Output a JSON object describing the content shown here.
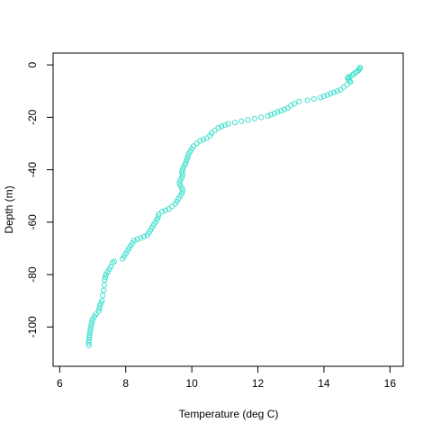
{
  "chart_data": {
    "type": "scatter",
    "title": "",
    "xlabel": "Temperature (deg C)",
    "ylabel": "Depth (m)",
    "xlim": [
      5.8,
      16.4
    ],
    "ylim": [
      -115,
      4.5
    ],
    "xticks": [
      6,
      8,
      10,
      12,
      14,
      16
    ],
    "yticks": [
      0,
      -20,
      -40,
      -60,
      -80,
      -100
    ],
    "marker": "open-circle",
    "color": "#40E0D0",
    "grid": false,
    "series": [
      {
        "points": [
          [
            15.1,
            -1.0
          ],
          [
            15.08,
            -1.5
          ],
          [
            15.05,
            -2.0
          ],
          [
            15.0,
            -2.5
          ],
          [
            14.95,
            -3.0
          ],
          [
            14.9,
            -3.5
          ],
          [
            14.85,
            -4.0
          ],
          [
            14.75,
            -4.5
          ],
          [
            14.72,
            -5.0
          ],
          [
            14.75,
            -5.5
          ],
          [
            14.78,
            -6.0
          ],
          [
            14.8,
            -6.5
          ],
          [
            14.7,
            -7.5
          ],
          [
            14.6,
            -8.5
          ],
          [
            14.5,
            -9.5
          ],
          [
            14.4,
            -10.0
          ],
          [
            14.3,
            -10.5
          ],
          [
            14.2,
            -11.0
          ],
          [
            14.1,
            -11.5
          ],
          [
            14.0,
            -12.0
          ],
          [
            13.9,
            -12.5
          ],
          [
            13.7,
            -13.0
          ],
          [
            13.5,
            -13.5
          ],
          [
            13.25,
            -14.0
          ],
          [
            13.1,
            -14.8
          ],
          [
            13.0,
            -15.5
          ],
          [
            12.9,
            -16.5
          ],
          [
            12.8,
            -17.0
          ],
          [
            12.7,
            -17.5
          ],
          [
            12.6,
            -18.0
          ],
          [
            12.5,
            -18.5
          ],
          [
            12.4,
            -19.0
          ],
          [
            12.3,
            -19.5
          ],
          [
            12.1,
            -20.0
          ],
          [
            11.9,
            -20.5
          ],
          [
            11.7,
            -21.0
          ],
          [
            11.5,
            -21.5
          ],
          [
            11.3,
            -22.0
          ],
          [
            11.1,
            -22.5
          ],
          [
            11.0,
            -23.0
          ],
          [
            10.9,
            -23.5
          ],
          [
            10.8,
            -24.0
          ],
          [
            10.7,
            -25.0
          ],
          [
            10.6,
            -26.0
          ],
          [
            10.55,
            -27.0
          ],
          [
            10.45,
            -28.0
          ],
          [
            10.35,
            -28.5
          ],
          [
            10.25,
            -29.0
          ],
          [
            10.15,
            -30.0
          ],
          [
            10.05,
            -31.0
          ],
          [
            10.0,
            -32.0
          ],
          [
            9.95,
            -33.0
          ],
          [
            9.9,
            -34.0
          ],
          [
            9.88,
            -35.0
          ],
          [
            9.85,
            -36.0
          ],
          [
            9.82,
            -37.0
          ],
          [
            9.8,
            -38.0
          ],
          [
            9.75,
            -39.0
          ],
          [
            9.72,
            -40.0
          ],
          [
            9.7,
            -41.0
          ],
          [
            9.72,
            -42.0
          ],
          [
            9.7,
            -43.0
          ],
          [
            9.65,
            -44.0
          ],
          [
            9.62,
            -45.0
          ],
          [
            9.65,
            -46.0
          ],
          [
            9.7,
            -47.0
          ],
          [
            9.72,
            -48.0
          ],
          [
            9.7,
            -49.0
          ],
          [
            9.65,
            -50.0
          ],
          [
            9.6,
            -51.0
          ],
          [
            9.55,
            -52.0
          ],
          [
            9.5,
            -53.0
          ],
          [
            9.4,
            -54.0
          ],
          [
            9.3,
            -55.0
          ],
          [
            9.2,
            -55.5
          ],
          [
            9.1,
            -56.0
          ],
          [
            9.0,
            -57.0
          ],
          [
            8.98,
            -58.0
          ],
          [
            8.95,
            -59.0
          ],
          [
            8.9,
            -60.0
          ],
          [
            8.85,
            -61.0
          ],
          [
            8.8,
            -62.0
          ],
          [
            8.75,
            -63.0
          ],
          [
            8.7,
            -64.0
          ],
          [
            8.65,
            -65.0
          ],
          [
            8.55,
            -65.5
          ],
          [
            8.45,
            -66.0
          ],
          [
            8.35,
            -66.5
          ],
          [
            8.25,
            -67.0
          ],
          [
            8.2,
            -68.0
          ],
          [
            8.15,
            -69.0
          ],
          [
            8.1,
            -70.0
          ],
          [
            8.05,
            -71.0
          ],
          [
            8.0,
            -72.0
          ],
          [
            7.95,
            -73.0
          ],
          [
            7.9,
            -74.0
          ],
          [
            7.65,
            -75.0
          ],
          [
            7.6,
            -75.5
          ],
          [
            7.55,
            -77.0
          ],
          [
            7.5,
            -78.0
          ],
          [
            7.45,
            -79.0
          ],
          [
            7.4,
            -80.0
          ],
          [
            7.38,
            -81.0
          ],
          [
            7.36,
            -82.0
          ],
          [
            7.35,
            -84.0
          ],
          [
            7.33,
            -86.0
          ],
          [
            7.3,
            -88.0
          ],
          [
            7.28,
            -90.0
          ],
          [
            7.25,
            -91.0
          ],
          [
            7.22,
            -92.0
          ],
          [
            7.2,
            -93.0
          ],
          [
            7.18,
            -94.0
          ],
          [
            7.1,
            -95.0
          ],
          [
            7.05,
            -96.0
          ],
          [
            7.0,
            -97.0
          ],
          [
            6.98,
            -98.0
          ],
          [
            6.96,
            -99.0
          ],
          [
            6.95,
            -100.0
          ],
          [
            6.93,
            -101.0
          ],
          [
            6.92,
            -102.0
          ],
          [
            6.9,
            -103.0
          ],
          [
            6.9,
            -104.0
          ],
          [
            6.88,
            -105.0
          ],
          [
            6.88,
            -106.0
          ],
          [
            6.88,
            -107.0
          ]
        ]
      }
    ]
  }
}
